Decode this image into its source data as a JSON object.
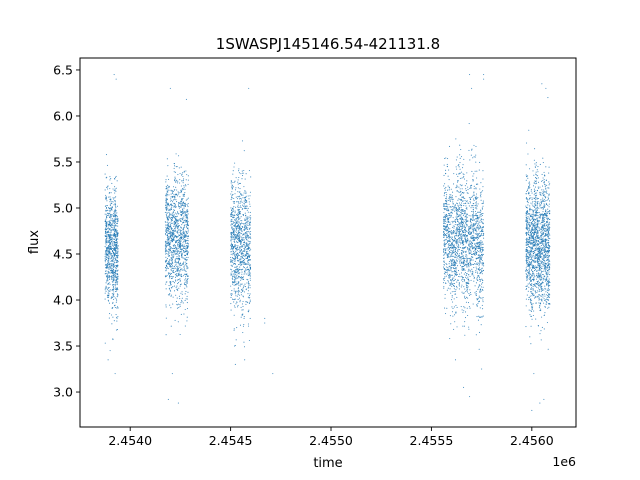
{
  "chart_data": {
    "type": "scatter",
    "title": "1SWASPJ145146.54-421131.8",
    "xlabel": "time",
    "ylabel": "flux",
    "x_offset_label": "1e6",
    "xlim": [
      2.45375,
      2.45622
    ],
    "ylim": [
      2.62,
      6.63
    ],
    "x_ticks": [
      2.454,
      2.4545,
      2.455,
      2.4555,
      2.456
    ],
    "x_tick_labels": [
      "2.4540",
      "2.4545",
      "2.4550",
      "2.4555",
      "2.4560"
    ],
    "y_ticks": [
      3.0,
      3.5,
      4.0,
      4.5,
      5.0,
      5.5,
      6.0,
      6.5
    ],
    "y_tick_labels": [
      "3.0",
      "3.5",
      "4.0",
      "4.5",
      "5.0",
      "5.5",
      "6.0",
      "6.5"
    ],
    "grid": false,
    "legend": "none",
    "marker_color": "#1f77b4",
    "clusters": [
      {
        "x_start": 2.453875,
        "x_end": 2.45394,
        "flux_center": 4.55,
        "flux_spread": 0.3,
        "n_points": 900
      },
      {
        "x_start": 2.454175,
        "x_end": 2.45429,
        "flux_center": 4.65,
        "flux_spread": 0.33,
        "n_points": 1200
      },
      {
        "x_start": 2.4545,
        "x_end": 2.4546,
        "flux_center": 4.6,
        "flux_spread": 0.35,
        "n_points": 1000
      },
      {
        "x_start": 2.45556,
        "x_end": 2.45576,
        "flux_center": 4.65,
        "flux_spread": 0.35,
        "n_points": 1800
      },
      {
        "x_start": 2.45597,
        "x_end": 2.45609,
        "flux_center": 4.6,
        "flux_spread": 0.35,
        "n_points": 1600
      }
    ],
    "outliers": [
      {
        "x": 2.45392,
        "y": 6.45
      },
      {
        "x": 2.45393,
        "y": 6.4
      },
      {
        "x": 2.45389,
        "y": 3.35
      },
      {
        "x": 2.4539,
        "y": 3.45
      },
      {
        "x": 2.453925,
        "y": 3.2
      },
      {
        "x": 2.4542,
        "y": 6.3
      },
      {
        "x": 2.45421,
        "y": 3.2
      },
      {
        "x": 2.45419,
        "y": 2.92
      },
      {
        "x": 2.45424,
        "y": 2.88
      },
      {
        "x": 2.45428,
        "y": 6.18
      },
      {
        "x": 2.45459,
        "y": 6.3
      },
      {
        "x": 2.45452,
        "y": 3.5
      },
      {
        "x": 2.45457,
        "y": 3.35
      },
      {
        "x": 2.45467,
        "y": 3.8
      },
      {
        "x": 2.45467,
        "y": 3.75
      },
      {
        "x": 2.45471,
        "y": 3.2
      },
      {
        "x": 2.45569,
        "y": 6.45
      },
      {
        "x": 2.45576,
        "y": 6.45
      },
      {
        "x": 2.45576,
        "y": 6.4
      },
      {
        "x": 2.4557,
        "y": 6.3
      },
      {
        "x": 2.45562,
        "y": 3.35
      },
      {
        "x": 2.45566,
        "y": 3.05
      },
      {
        "x": 2.45569,
        "y": 2.95
      },
      {
        "x": 2.45575,
        "y": 3.25
      },
      {
        "x": 2.45605,
        "y": 6.35
      },
      {
        "x": 2.45607,
        "y": 6.3
      },
      {
        "x": 2.456,
        "y": 2.8
      },
      {
        "x": 2.45604,
        "y": 2.88
      },
      {
        "x": 2.45606,
        "y": 2.92
      },
      {
        "x": 2.45601,
        "y": 3.2
      },
      {
        "x": 2.45599,
        "y": 3.6
      },
      {
        "x": 2.45608,
        "y": 6.2
      }
    ]
  }
}
